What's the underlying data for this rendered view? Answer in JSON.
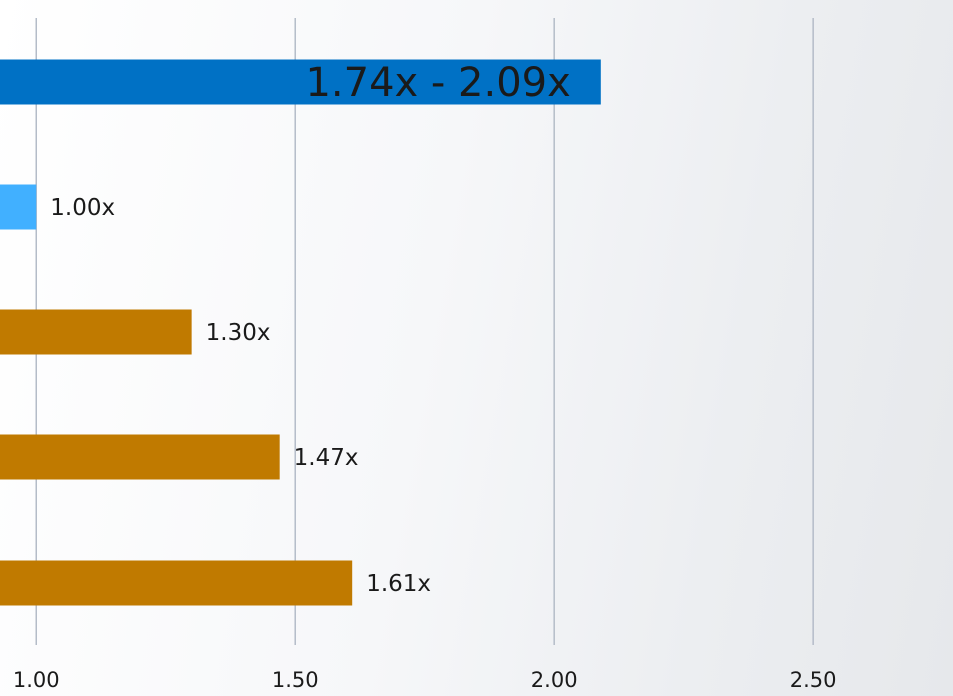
{
  "chart_data": {
    "type": "bar",
    "orientation": "horizontal",
    "xlim": [
      0.93,
      2.77
    ],
    "x_ticks": [
      1.0,
      1.5,
      2.0,
      2.5
    ],
    "x_tick_labels": [
      "1.00",
      "1.50",
      "2.00",
      "2.50"
    ],
    "grid": "vertical",
    "bars": [
      {
        "value": 2.09,
        "label": "1.74x - 2.09x",
        "label_position": "inside",
        "color": "#0071c5"
      },
      {
        "value": 1.0,
        "label": "1.00x",
        "label_position": "outside",
        "color": "#41b0ff"
      },
      {
        "value": 1.3,
        "label": "1.30x",
        "label_position": "outside",
        "color": "#c07a00"
      },
      {
        "value": 1.47,
        "label": "1.47x",
        "label_position": "outside",
        "color": "#c07a00"
      },
      {
        "value": 1.61,
        "label": "1.61x",
        "label_position": "outside",
        "color": "#c07a00"
      }
    ],
    "colors": {
      "gridline": "#b4bcc8",
      "text": "#1a1a1a",
      "inside_label": "#ffffff"
    }
  }
}
